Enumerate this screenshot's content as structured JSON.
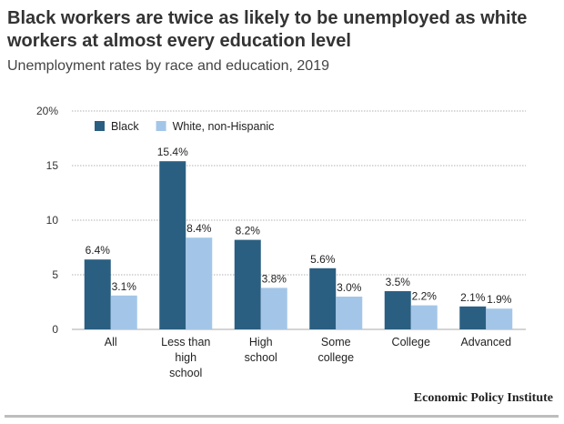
{
  "chart_data": {
    "type": "bar",
    "title": "Black workers are twice as likely to be unemployed as white workers at almost every education level",
    "subtitle": "Unemployment rates by race and education, 2019",
    "categories": [
      [
        "All"
      ],
      [
        "Less than",
        "high",
        "school"
      ],
      [
        "High",
        "school"
      ],
      [
        "Some",
        "college"
      ],
      [
        "College"
      ],
      [
        "Advanced"
      ]
    ],
    "series": [
      {
        "name": "Black",
        "color": "#2a5f82",
        "values": [
          6.4,
          15.4,
          8.2,
          5.6,
          3.5,
          2.1
        ],
        "labels": [
          "6.4%",
          "15.4%",
          "8.2%",
          "5.6%",
          "3.5%",
          "2.1%"
        ]
      },
      {
        "name": "White, non-Hispanic",
        "color": "#a3c6e8",
        "values": [
          3.1,
          8.4,
          3.8,
          3.0,
          2.2,
          1.9
        ],
        "labels": [
          "3.1%",
          "8.4%",
          "3.8%",
          "3.0%",
          "2.2%",
          "1.9%"
        ]
      }
    ],
    "ylim": [
      0,
      20
    ],
    "yticks": [
      0,
      5,
      10,
      15,
      20
    ],
    "ytick_labels": [
      "0",
      "5",
      "10",
      "15",
      "20%"
    ],
    "grid": true,
    "legend": "top-left"
  },
  "source": "Economic Policy Institute"
}
